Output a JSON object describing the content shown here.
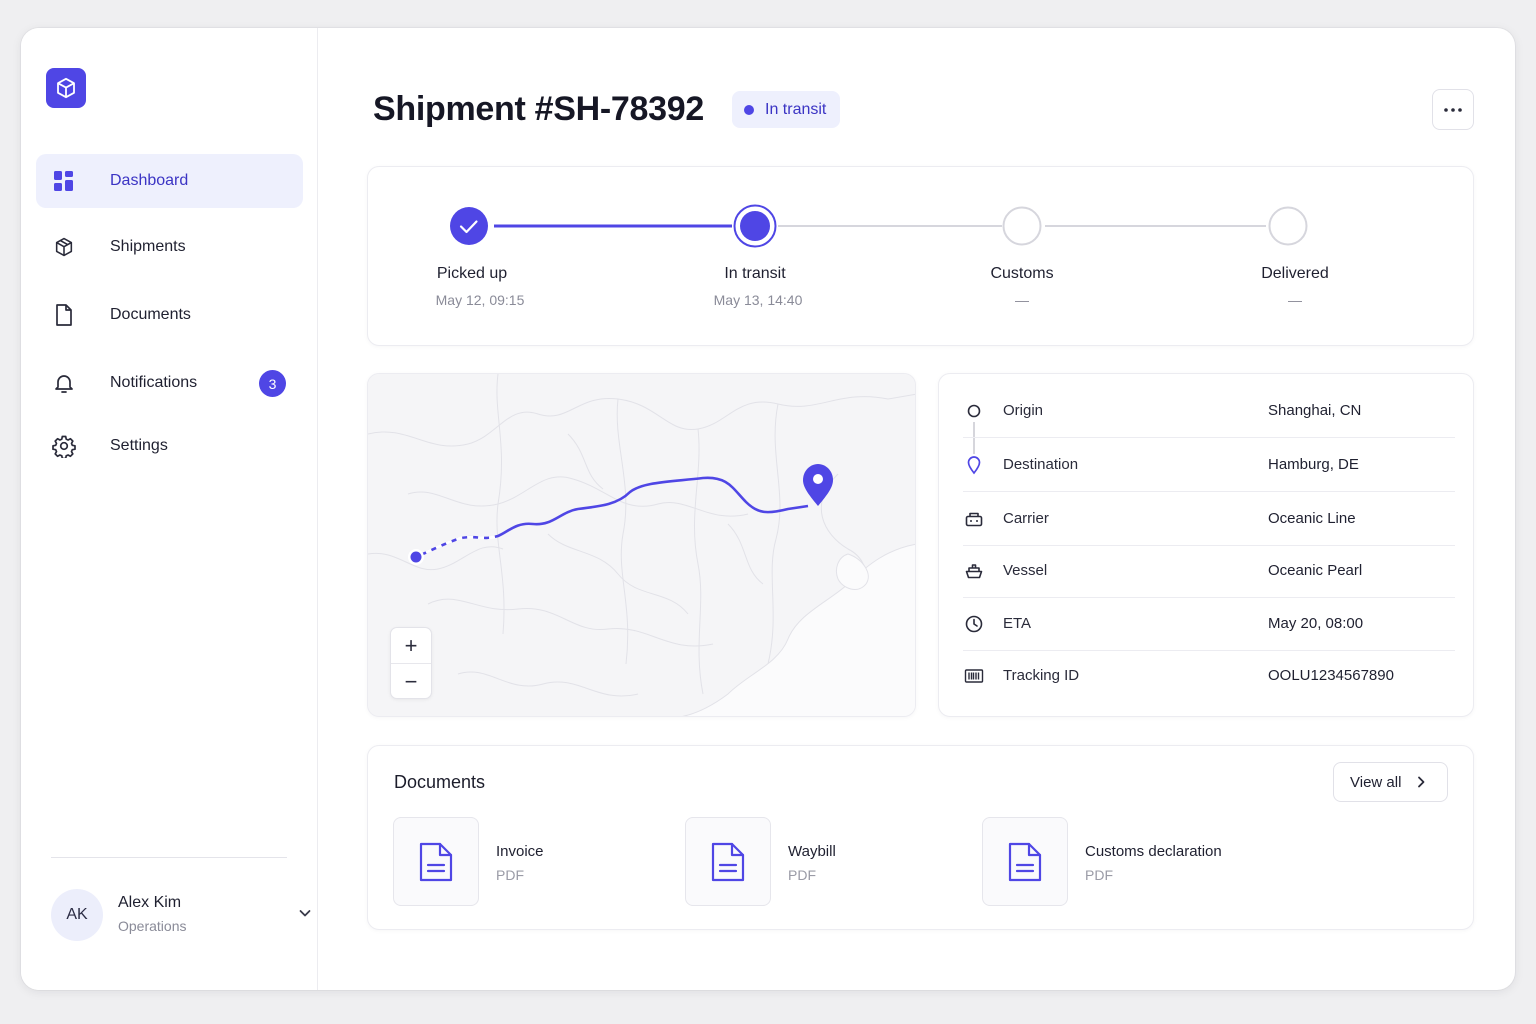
{
  "sidebar": {
    "logo_icon": "cube-icon",
    "items": [
      {
        "label": "Dashboard",
        "icon": "grid-icon",
        "active": true
      },
      {
        "label": "Shipments",
        "icon": "cube-outline-icon"
      },
      {
        "label": "Documents",
        "icon": "file-icon"
      },
      {
        "label": "Notifications",
        "icon": "bell-icon",
        "badge": "3"
      },
      {
        "label": "Settings",
        "icon": "gear-icon"
      }
    ],
    "user": {
      "initials": "AK",
      "name": "Alex Kim",
      "role": "Operations"
    }
  },
  "header": {
    "title": "Shipment #SH-78392",
    "status": "In transit"
  },
  "progress": {
    "steps": [
      {
        "label": "Picked up",
        "time": "May 12, 09:15",
        "state": "done"
      },
      {
        "label": "In transit",
        "time": "May 13, 14:40",
        "state": "current"
      },
      {
        "label": "Customs",
        "time": "—",
        "state": "pending"
      },
      {
        "label": "Delivered",
        "time": "—",
        "state": "pending"
      }
    ]
  },
  "map": {
    "zoom_in": "+",
    "zoom_out": "−"
  },
  "details": [
    {
      "icon": "origin-circle-icon",
      "label": "Origin",
      "value": "Shanghai, CN"
    },
    {
      "icon": "destination-pin-icon",
      "label": "Destination",
      "value": "Hamburg, DE"
    },
    {
      "icon": "truck-icon",
      "label": "Carrier",
      "value": "Oceanic Line"
    },
    {
      "icon": "ship-icon",
      "label": "Vessel",
      "value": "Oceanic Pearl"
    },
    {
      "icon": "clock-icon",
      "label": "ETA",
      "value": "May 20, 08:00"
    },
    {
      "icon": "barcode-icon",
      "label": "Tracking ID",
      "value": "OOLU1234567890"
    }
  ],
  "documents": {
    "title": "Documents",
    "view_all": "View all",
    "items": [
      {
        "name": "Invoice",
        "type": "PDF"
      },
      {
        "name": "Waybill",
        "type": "PDF"
      },
      {
        "name": "Customs declaration",
        "type": "PDF"
      }
    ]
  },
  "colors": {
    "accent": "#4f46e5",
    "accent_light": "#eef0fd",
    "muted": "#8a8b98"
  }
}
